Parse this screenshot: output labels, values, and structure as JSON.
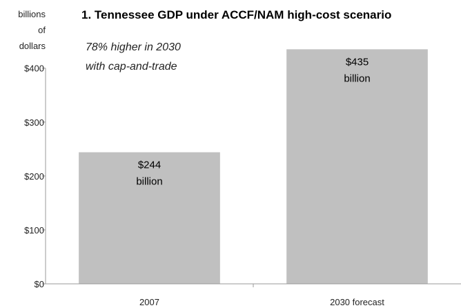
{
  "chart_data": {
    "type": "bar",
    "title": "1. Tennessee GDP under ACCF/NAM high-cost scenario",
    "ylabel": [
      "billions",
      "of",
      "dollars"
    ],
    "xlabel": "",
    "categories": [
      "2007",
      "2030 forecast"
    ],
    "values": [
      244,
      435
    ],
    "data_labels": [
      [
        "$244",
        "billion"
      ],
      [
        "$435",
        "billion"
      ]
    ],
    "ylim": [
      0,
      400
    ],
    "yticks": [
      0,
      100,
      200,
      300,
      400
    ],
    "ytick_labels": [
      "$0",
      "$100",
      "$200",
      "$300",
      "$400"
    ],
    "annotation": [
      "78% higher in 2030",
      "with cap-and-trade"
    ],
    "bar_color": "#c0c0c0",
    "grid": false,
    "legend": "none"
  }
}
